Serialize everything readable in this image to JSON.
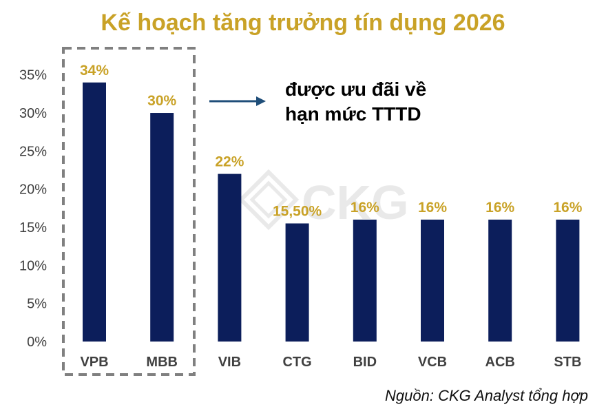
{
  "chart_data": {
    "type": "bar",
    "title": "Kế hoạch tăng trưởng tín dụng 2026",
    "categories": [
      "VPB",
      "MBB",
      "VIB",
      "CTG",
      "BID",
      "VCB",
      "ACB",
      "STB"
    ],
    "values": [
      34,
      30,
      22,
      15.5,
      16,
      16,
      16,
      16
    ],
    "data_labels": [
      "34%",
      "30%",
      "22%",
      "15,50%",
      "16%",
      "16%",
      "16%",
      "16%"
    ],
    "y_ticks": [
      "0%",
      "5%",
      "10%",
      "15%",
      "20%",
      "25%",
      "30%",
      "35%"
    ],
    "ylim": [
      0,
      35
    ],
    "grid": false,
    "legend": "none",
    "highlighted_categories": [
      "VPB",
      "MBB"
    ],
    "annotation": {
      "line1": "được ưu đãi về",
      "line2": "hạn mức TTTD"
    },
    "watermark": "CKG",
    "source": "Nguồn: CKG Analyst tổng hợp",
    "colors": {
      "bar": "#0c1e5b",
      "label": "#c9a227",
      "title": "#c9a227",
      "axis_text": "#404040",
      "arrow": "#1f4e79",
      "highlight_box": "#808080"
    }
  }
}
